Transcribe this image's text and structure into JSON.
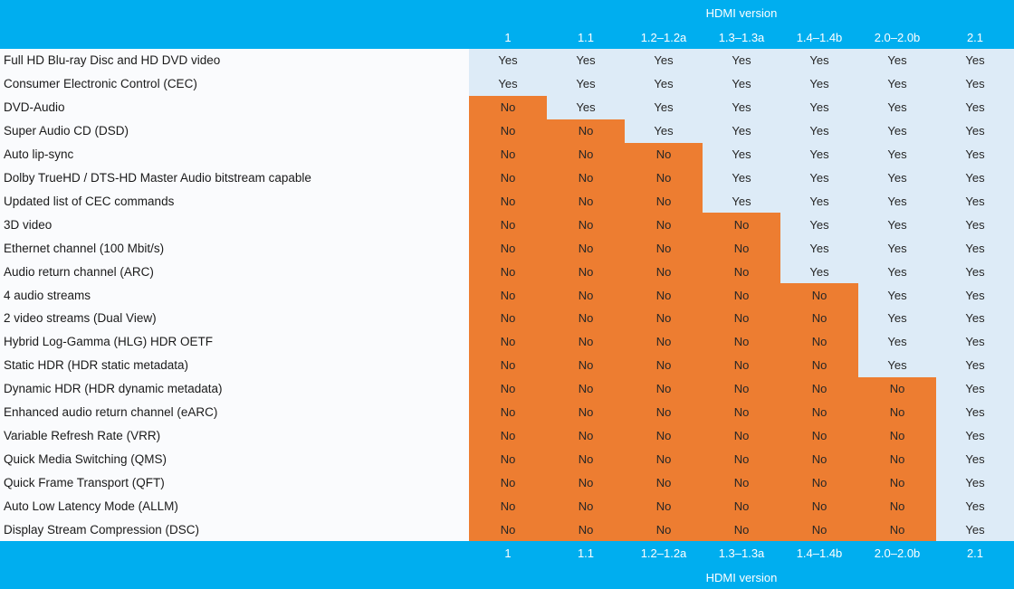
{
  "colors": {
    "band_bg": "#00AEEF",
    "band_text": "#FFFFFF",
    "yes_bg": "#DDEBF7",
    "no_bg": "#ED7D31",
    "label_bg": "#FAFBFD",
    "feature_text": "#1A1A1A",
    "cell_text": "#262626"
  },
  "header": {
    "group_label": "HDMI version",
    "columns": [
      "1",
      "1.1",
      "1.2–1.2a",
      "1.3–1.3a",
      "1.4–1.4b",
      "2.0–2.0b",
      "2.1"
    ]
  },
  "footer": {
    "group_label": "HDMI version",
    "columns": [
      "1",
      "1.1",
      "1.2–1.2a",
      "1.3–1.3a",
      "1.4–1.4b",
      "2.0–2.0b",
      "2.1"
    ]
  },
  "chart_data": {
    "type": "table",
    "title": "HDMI version",
    "columns": [
      "1",
      "1.1",
      "1.2–1.2a",
      "1.3–1.3a",
      "1.4–1.4b",
      "2.0–2.0b",
      "2.1"
    ],
    "rows": [
      {
        "feature": "Full HD Blu-ray Disc and HD DVD video",
        "values": [
          "Yes",
          "Yes",
          "Yes",
          "Yes",
          "Yes",
          "Yes",
          "Yes"
        ]
      },
      {
        "feature": "Consumer Electronic Control (CEC)",
        "values": [
          "Yes",
          "Yes",
          "Yes",
          "Yes",
          "Yes",
          "Yes",
          "Yes"
        ]
      },
      {
        "feature": "DVD-Audio",
        "values": [
          "No",
          "Yes",
          "Yes",
          "Yes",
          "Yes",
          "Yes",
          "Yes"
        ]
      },
      {
        "feature": "Super Audio CD (DSD)",
        "values": [
          "No",
          "No",
          "Yes",
          "Yes",
          "Yes",
          "Yes",
          "Yes"
        ]
      },
      {
        "feature": "Auto lip-sync",
        "values": [
          "No",
          "No",
          "No",
          "Yes",
          "Yes",
          "Yes",
          "Yes"
        ]
      },
      {
        "feature": "Dolby TrueHD / DTS-HD Master Audio bitstream capable",
        "values": [
          "No",
          "No",
          "No",
          "Yes",
          "Yes",
          "Yes",
          "Yes"
        ]
      },
      {
        "feature": "Updated list of CEC commands",
        "values": [
          "No",
          "No",
          "No",
          "Yes",
          "Yes",
          "Yes",
          "Yes"
        ]
      },
      {
        "feature": "3D video",
        "values": [
          "No",
          "No",
          "No",
          "No",
          "Yes",
          "Yes",
          "Yes"
        ]
      },
      {
        "feature": "Ethernet channel (100 Mbit/s)",
        "values": [
          "No",
          "No",
          "No",
          "No",
          "Yes",
          "Yes",
          "Yes"
        ]
      },
      {
        "feature": "Audio return channel (ARC)",
        "values": [
          "No",
          "No",
          "No",
          "No",
          "Yes",
          "Yes",
          "Yes"
        ]
      },
      {
        "feature": "4 audio streams",
        "values": [
          "No",
          "No",
          "No",
          "No",
          "No",
          "Yes",
          "Yes"
        ]
      },
      {
        "feature": "2 video streams (Dual View)",
        "values": [
          "No",
          "No",
          "No",
          "No",
          "No",
          "Yes",
          "Yes"
        ]
      },
      {
        "feature": "Hybrid Log-Gamma (HLG) HDR OETF",
        "values": [
          "No",
          "No",
          "No",
          "No",
          "No",
          "Yes",
          "Yes"
        ]
      },
      {
        "feature": "Static HDR (HDR static metadata)",
        "values": [
          "No",
          "No",
          "No",
          "No",
          "No",
          "Yes",
          "Yes"
        ]
      },
      {
        "feature": "Dynamic HDR (HDR dynamic metadata)",
        "values": [
          "No",
          "No",
          "No",
          "No",
          "No",
          "No",
          "Yes"
        ]
      },
      {
        "feature": "Enhanced audio return channel (eARC)",
        "values": [
          "No",
          "No",
          "No",
          "No",
          "No",
          "No",
          "Yes"
        ]
      },
      {
        "feature": "Variable Refresh Rate (VRR)",
        "values": [
          "No",
          "No",
          "No",
          "No",
          "No",
          "No",
          "Yes"
        ]
      },
      {
        "feature": "Quick Media Switching (QMS)",
        "values": [
          "No",
          "No",
          "No",
          "No",
          "No",
          "No",
          "Yes"
        ]
      },
      {
        "feature": "Quick Frame Transport (QFT)",
        "values": [
          "No",
          "No",
          "No",
          "No",
          "No",
          "No",
          "Yes"
        ]
      },
      {
        "feature": "Auto Low Latency Mode (ALLM)",
        "values": [
          "No",
          "No",
          "No",
          "No",
          "No",
          "No",
          "Yes"
        ]
      },
      {
        "feature": "Display Stream Compression (DSC)",
        "values": [
          "No",
          "No",
          "No",
          "No",
          "No",
          "No",
          "Yes"
        ]
      }
    ]
  }
}
